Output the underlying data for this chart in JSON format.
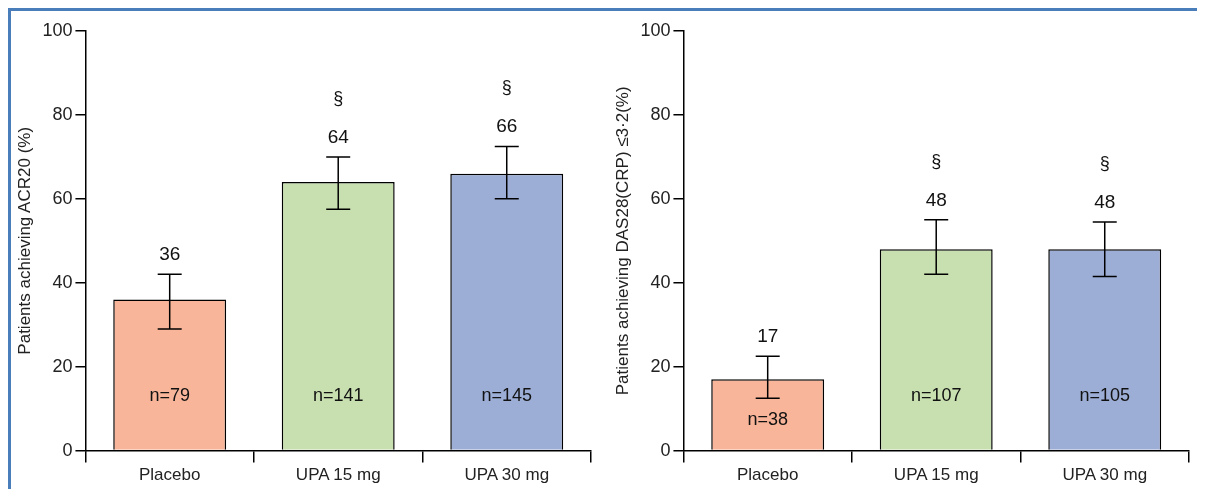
{
  "chart_data": [
    {
      "type": "bar",
      "categories": [
        "Placebo",
        "UPA 15 mg",
        "UPA 30 mg"
      ],
      "values": [
        36,
        64,
        66
      ],
      "colors": [
        "#f8b59a",
        "#c8dfb0",
        "#9daed6"
      ],
      "errors": [
        [
          29,
          42
        ],
        [
          57.5,
          70
        ],
        [
          60,
          72.5
        ]
      ],
      "data_labels": true,
      "ylabel": "Patients achieving ACR20 (%)",
      "ylim": [
        0,
        100
      ],
      "yticks": [
        0,
        20,
        40,
        60,
        80,
        100
      ],
      "grid": false,
      "legend": false,
      "annotations": [
        "§",
        "§",
        "n=79",
        "n=141",
        "n=145"
      ]
    },
    {
      "type": "bar",
      "categories": [
        "Placebo",
        "UPA 15 mg",
        "UPA 30 mg"
      ],
      "values": [
        17,
        48,
        48
      ],
      "colors": [
        "#f8b59a",
        "#c8dfb0",
        "#9daed6"
      ],
      "errors": [
        [
          12.5,
          22.5
        ],
        [
          42,
          55
        ],
        [
          41.5,
          54.5
        ]
      ],
      "data_labels": true,
      "ylabel": "Patients achieving DAS28(CRP) ≤3·2(%)",
      "ylim": [
        0,
        100
      ],
      "yticks": [
        0,
        20,
        40,
        60,
        80,
        100
      ],
      "grid": false,
      "legend": false,
      "annotations": [
        "§",
        "§",
        "n=38",
        "n=107",
        "n=105"
      ]
    }
  ]
}
